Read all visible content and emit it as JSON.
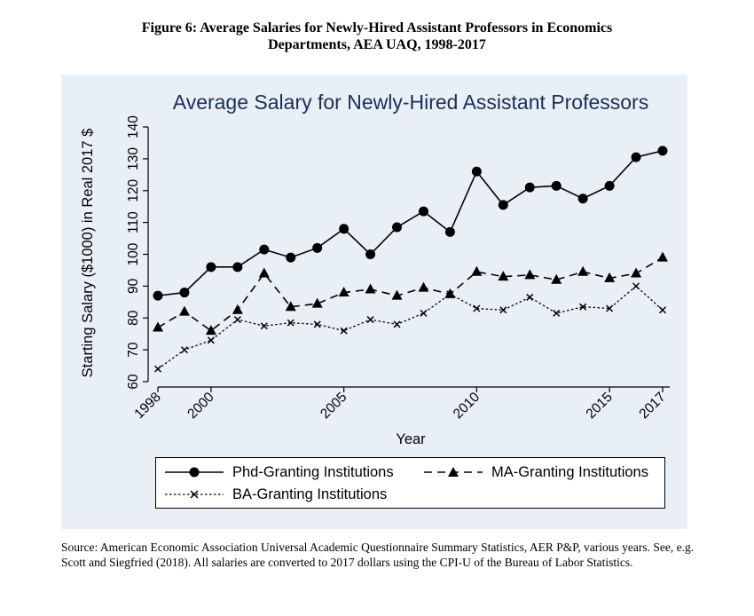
{
  "figure": {
    "caption_line1": "Figure 6: Average Salaries for Newly-Hired Assistant Professors in Economics",
    "caption_line2": "Departments, AEA UAQ, 1998-2017"
  },
  "source_note": "Source:  American Economic Association Universal Academic Questionnaire Summary Statistics, AER P&P, various years. See, e.g. Scott and Siegfried (2018). All salaries are converted to 2017 dollars using the CPI-U of the Bureau of Labor Statistics.",
  "colors": {
    "panel_background": "#e9f0f5",
    "title": "#1a2e5a",
    "series": "#000000"
  },
  "chart_data": {
    "type": "line",
    "title": "Average Salary for Newly-Hired Assistant Professors",
    "xlabel": "Year",
    "ylabel": "Starting Salary ($1000) in Real 2017 $",
    "xlim": [
      1998,
      2017
    ],
    "ylim": [
      60,
      140
    ],
    "x_ticks": [
      1998,
      2000,
      2005,
      2010,
      2015,
      2017
    ],
    "y_ticks": [
      60,
      70,
      80,
      90,
      100,
      110,
      120,
      130,
      140
    ],
    "grid": false,
    "legend_position": "bottom",
    "x": [
      1998,
      1999,
      2000,
      2001,
      2002,
      2003,
      2004,
      2005,
      2006,
      2007,
      2008,
      2009,
      2010,
      2011,
      2012,
      2013,
      2014,
      2015,
      2016,
      2017
    ],
    "series": [
      {
        "name": "Phd-Granting Institutions",
        "marker": "circle",
        "line": "solid",
        "values": [
          87,
          88,
          96,
          96,
          101.5,
          99,
          102,
          108,
          100,
          108.5,
          113.5,
          107,
          126,
          115.5,
          121,
          121.5,
          117.5,
          121.5,
          130.5,
          132.5
        ]
      },
      {
        "name": "MA-Granting Institutions",
        "marker": "triangle",
        "line": "dashed",
        "values": [
          77,
          82,
          76,
          82.5,
          94,
          83.5,
          84.5,
          88,
          89,
          87,
          89.5,
          87.5,
          94.5,
          93,
          93.5,
          92,
          94.5,
          92.5,
          94,
          99
        ]
      },
      {
        "name": "BA-Granting Institutions",
        "marker": "x",
        "line": "dotted",
        "values": [
          64,
          70,
          73,
          79.5,
          77.5,
          78.5,
          78,
          76,
          79.5,
          78,
          81.5,
          87.5,
          83,
          82.5,
          86.5,
          81.5,
          83.5,
          83,
          90,
          82.5
        ]
      }
    ]
  }
}
